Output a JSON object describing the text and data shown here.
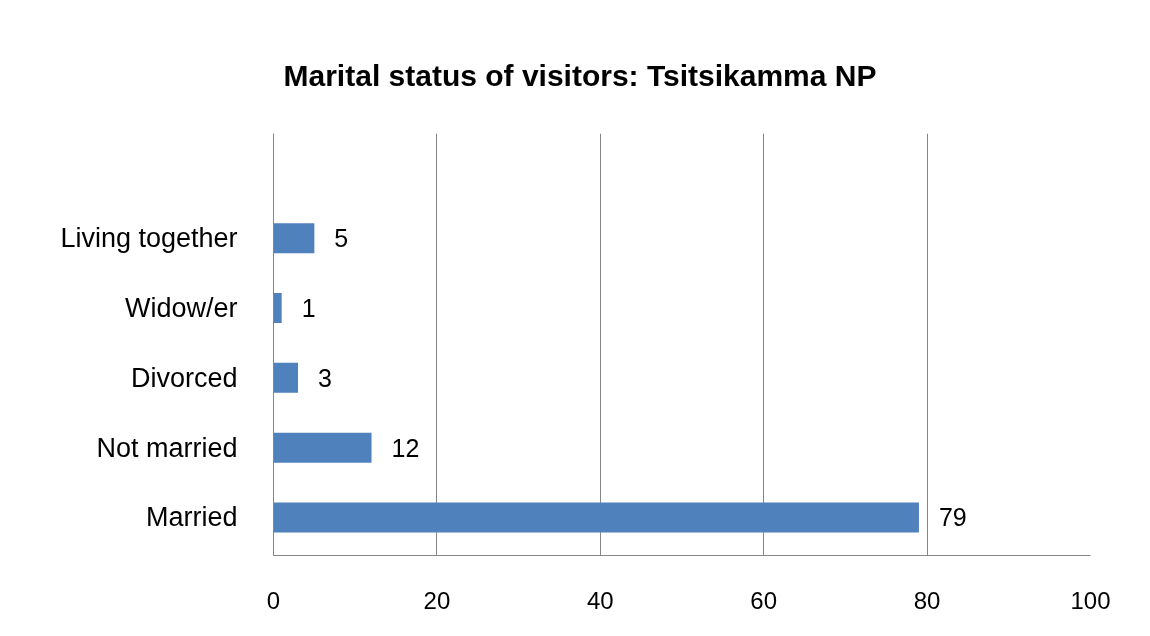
{
  "chart_data": {
    "type": "bar",
    "orientation": "horizontal",
    "title": "Marital status of visitors: Tsitsikamma NP",
    "categories": [
      "Living together",
      "Widow/er",
      "Divorced",
      "Not married",
      "Married"
    ],
    "values": [
      5,
      1,
      3,
      12,
      79
    ],
    "color": "#4f81bd",
    "xlim": [
      0,
      100
    ],
    "xticks": [
      0,
      20,
      40,
      60,
      80,
      100
    ],
    "grid": "x",
    "data_labels": true
  }
}
